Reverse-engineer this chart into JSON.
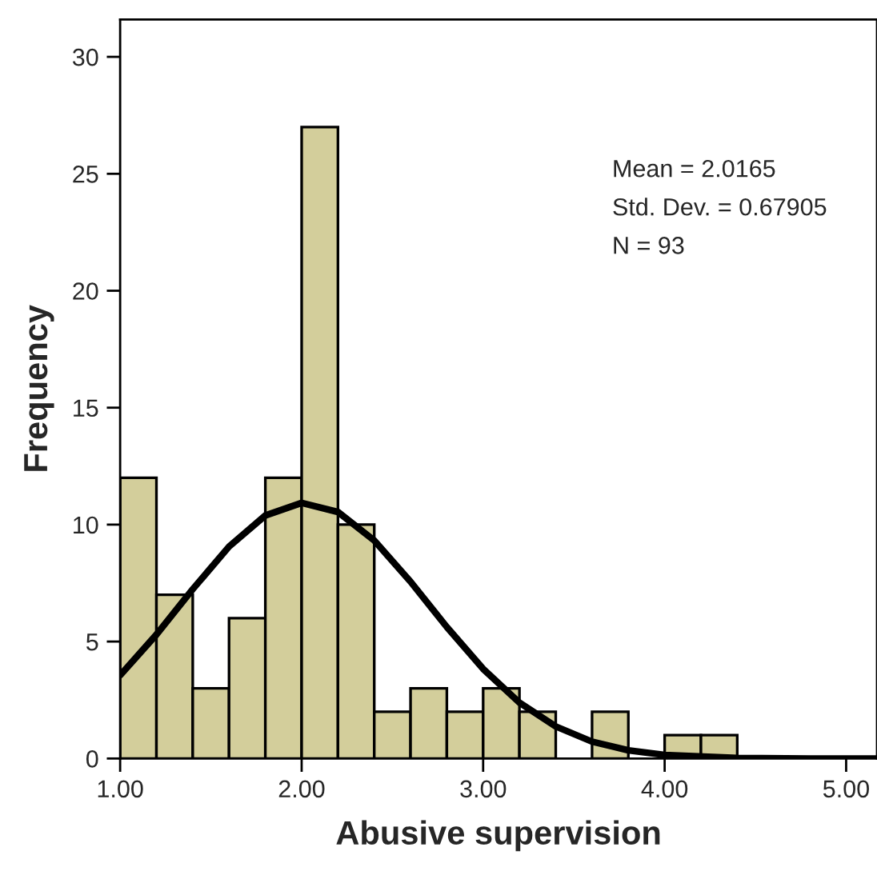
{
  "chart_data": {
    "type": "histogram",
    "xlabel": "Abusive supervision",
    "ylabel": "Frequency",
    "bins": [
      1.0,
      1.2,
      1.4,
      1.6,
      1.8,
      2.0,
      2.2,
      2.4,
      2.6,
      2.8,
      3.0,
      3.2,
      3.4,
      3.6,
      3.8,
      4.0,
      4.2,
      4.4
    ],
    "values": [
      12,
      7,
      3,
      6,
      12,
      27,
      10,
      2,
      3,
      2,
      3,
      2,
      0,
      2,
      0,
      1,
      1
    ],
    "color": "#d3ce9b",
    "series": [
      {
        "type": "line",
        "color": "#000000",
        "x": [
          1.0,
          1.2,
          1.4,
          1.6,
          1.8,
          2.0,
          2.2,
          2.4,
          2.6,
          2.8,
          3.0,
          3.2,
          3.4,
          3.6,
          3.8,
          4.0,
          4.4,
          4.8,
          5.17
        ],
        "values": [
          3.56,
          5.3,
          7.24,
          9.06,
          10.39,
          10.93,
          10.54,
          9.32,
          7.56,
          5.62,
          3.83,
          2.39,
          1.37,
          0.72,
          0.35,
          0.15,
          0.02,
          0.0,
          0.0
        ]
      }
    ],
    "xlim": [
      1.0,
      5.17
    ],
    "ylim": [
      0,
      31.6
    ],
    "xticks": [
      {
        "value": 1,
        "label": "1.00"
      },
      {
        "value": 2,
        "label": "2.00"
      },
      {
        "value": 3,
        "label": "3.00"
      },
      {
        "value": 4,
        "label": "4.00"
      },
      {
        "value": 5,
        "label": "5.00"
      }
    ],
    "yticks": [
      0,
      5,
      10,
      15,
      20,
      25,
      30
    ],
    "annotations": [
      "Mean = 2.0165",
      "Std. Dev. = 0.67905",
      "N = 93"
    ]
  }
}
